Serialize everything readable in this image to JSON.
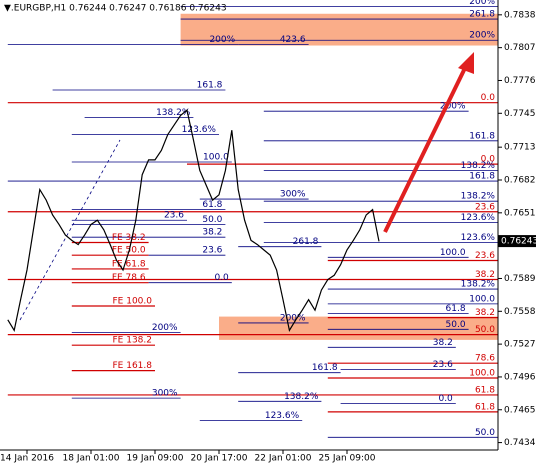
{
  "chart_data": {
    "type": "line",
    "title": "▼.EURGBP,H1  0.76244 0.76247 0.76186 0.76243",
    "categories": [
      null,
      null,
      null,
      "14 Jan 2016",
      null,
      null,
      null,
      null,
      null,
      null,
      null,
      null,
      null,
      "18 Jan 01:00",
      null,
      null,
      null,
      null,
      null,
      null,
      null,
      null,
      null,
      "19 Jan 09:00",
      null,
      null,
      null,
      null,
      null,
      null,
      null,
      null,
      null,
      "20 Jan 17:00",
      null,
      null,
      null,
      null,
      null,
      null,
      null,
      null,
      null,
      "22 Jan 01:00",
      null,
      null,
      null,
      null,
      null,
      null,
      null,
      null,
      null,
      "25 Jan 09:00",
      null,
      null,
      null,
      null,
      null
    ],
    "values": [
      0.755,
      0.754,
      0.7569,
      0.7597,
      0.7635,
      0.7673,
      0.7663,
      0.7649,
      0.764,
      0.763,
      0.7625,
      0.7621,
      0.763,
      0.764,
      0.7644,
      0.7635,
      0.7621,
      0.7606,
      0.7597,
      0.7616,
      0.7644,
      0.7687,
      0.7701,
      0.7701,
      0.771,
      0.7725,
      0.7734,
      0.7743,
      0.7748,
      0.772,
      0.7691,
      0.7677,
      0.7663,
      0.7668,
      0.7691,
      0.7729,
      0.7673,
      0.7644,
      0.7625,
      0.7621,
      0.7616,
      0.7611,
      0.7597,
      0.7569,
      0.754,
      0.755,
      0.7559,
      0.7569,
      0.7559,
      0.7578,
      0.7588,
      0.7592,
      0.7602,
      0.7616,
      0.7625,
      0.7635,
      0.7649,
      0.7654,
      0.7624
    ],
    "color": "#000000",
    "ylim": [
      0.7427,
      0.7852
    ],
    "yticks": [
      {
        "value": 0.7838,
        "label": "0.78380"
      },
      {
        "value": 0.7807,
        "label": "0.78070"
      },
      {
        "value": 0.7776,
        "label": "0.77760"
      },
      {
        "value": 0.7745,
        "label": "0.77450"
      },
      {
        "value": 0.7713,
        "label": "0.77130"
      },
      {
        "value": 0.7682,
        "label": "0.76820"
      },
      {
        "value": 0.7651,
        "label": "0.76510"
      },
      {
        "value": 0.7589,
        "label": "0.75890"
      },
      {
        "value": 0.7558,
        "label": "0.75580"
      },
      {
        "value": 0.7527,
        "label": "0.75270"
      },
      {
        "value": 0.7496,
        "label": "0.74960"
      },
      {
        "value": 0.7465,
        "label": "0.74650"
      },
      {
        "value": 0.7434,
        "label": "0.74340"
      }
    ],
    "last_price": 0.76243,
    "zones": [
      {
        "from": 27,
        "to": 77,
        "low": 0.7809,
        "high": 0.7839,
        "color": "#f9a47c"
      },
      {
        "from": 33,
        "to": 77,
        "low": 0.7531,
        "high": 0.7553,
        "color": "#f9a47c"
      }
    ],
    "levels": [
      {
        "price": 0.7846,
        "label": "200%",
        "color": "#000080",
        "from": 27,
        "to": 77
      },
      {
        "price": 0.7834,
        "label": "261.8",
        "color": "#000080",
        "from": 27,
        "to": 77
      },
      {
        "price": 0.7814,
        "label": "200%",
        "color": "#000080",
        "from": 27,
        "to": 77
      },
      {
        "price": 0.781,
        "label": "200%",
        "color": "#000080",
        "from": 0,
        "to": 36
      },
      {
        "price": 0.781,
        "label": "423.6",
        "color": "#000080",
        "from": 36,
        "to": 47
      },
      {
        "price": 0.7767,
        "label": "161.8",
        "color": "#000080",
        "from": 7,
        "to": 34
      },
      {
        "price": 0.7755,
        "label": "0.0",
        "color": "#d00000",
        "from": 0,
        "to": 77
      },
      {
        "price": 0.7747,
        "label": "200%",
        "color": "#000080",
        "from": 40,
        "to": 72
      },
      {
        "price": 0.7741,
        "label": "138.2%",
        "color": "#000080",
        "from": 12,
        "to": 29
      },
      {
        "price": 0.7725,
        "label": "123.6%",
        "color": "#000080",
        "from": 10,
        "to": 33
      },
      {
        "price": 0.7719,
        "label": "161.8",
        "color": "#000080",
        "from": 40,
        "to": 77
      },
      {
        "price": 0.7699,
        "label": "100.0",
        "color": "#000080",
        "from": 10,
        "to": 35
      },
      {
        "price": 0.7697,
        "label": "0.0",
        "color": "#d00000",
        "from": 28,
        "to": 77
      },
      {
        "price": 0.7691,
        "label": "138.2%",
        "color": "#000080",
        "from": 40,
        "to": 77
      },
      {
        "price": 0.7681,
        "label": "161.8",
        "color": "#000080",
        "from": 0,
        "to": 77
      },
      {
        "price": 0.7664,
        "label": "300%",
        "color": "#000080",
        "from": 30,
        "to": 47
      },
      {
        "price": 0.7662,
        "label": "138.2%",
        "color": "#000080",
        "from": 40,
        "to": 77
      },
      {
        "price": 0.7654,
        "label": "61.8",
        "color": "#000080",
        "from": 10,
        "to": 34
      },
      {
        "price": 0.7652,
        "label": "23.6",
        "color": "#d00000",
        "from": 0,
        "to": 77
      },
      {
        "price": 0.7644,
        "label": "23.6",
        "color": "#000080",
        "from": 10,
        "to": 28
      },
      {
        "price": 0.7642,
        "label": "123.6%",
        "color": "#000080",
        "from": 40,
        "to": 77
      },
      {
        "price": 0.764,
        "label": "50.0",
        "color": "#000080",
        "from": 10,
        "to": 34
      },
      {
        "price": 0.7628,
        "label": "38.2",
        "color": "#000080",
        "from": 10,
        "to": 34
      },
      {
        "price": 0.7623,
        "label": "FE 38.2",
        "color": "#d00000",
        "from": 10,
        "to": 22
      },
      {
        "price": 0.7623,
        "label": "123.6%",
        "color": "#000080",
        "from": 40,
        "to": 77
      },
      {
        "price": 0.7619,
        "label": "261.8",
        "color": "#000080",
        "from": 36,
        "to": 49
      },
      {
        "price": 0.7611,
        "label": "FE 50.0",
        "color": "#d00000",
        "from": 10,
        "to": 22
      },
      {
        "price": 0.7611,
        "label": "23.6",
        "color": "#000080",
        "from": 22,
        "to": 34
      },
      {
        "price": 0.7609,
        "label": "100.0",
        "color": "#000080",
        "from": 50,
        "to": 72
      },
      {
        "price": 0.7606,
        "label": "23.6",
        "color": "#d00000",
        "from": 50,
        "to": 77
      },
      {
        "price": 0.7598,
        "label": "FE 61.8",
        "color": "#d00000",
        "from": 10,
        "to": 22
      },
      {
        "price": 0.7588,
        "label": "38.2",
        "color": "#d00000",
        "from": 0,
        "to": 77
      },
      {
        "price": 0.7585,
        "label": "FE 78.6",
        "color": "#d00000",
        "from": 10,
        "to": 22
      },
      {
        "price": 0.7585,
        "label": "0.0",
        "color": "#000080",
        "from": 22,
        "to": 35
      },
      {
        "price": 0.7579,
        "label": "138.2%",
        "color": "#000080",
        "from": 50,
        "to": 77
      },
      {
        "price": 0.7565,
        "label": "100.0",
        "color": "#000080",
        "from": 50,
        "to": 77
      },
      {
        "price": 0.7563,
        "label": "FE 100.0",
        "color": "#d00000",
        "from": 10,
        "to": 23
      },
      {
        "price": 0.7556,
        "label": "61.8",
        "color": "#000080",
        "from": 50,
        "to": 72
      },
      {
        "price": 0.7552,
        "label": "38.2",
        "color": "#d00000",
        "from": 50,
        "to": 77
      },
      {
        "price": 0.7547,
        "label": "200%",
        "color": "#000080",
        "from": 36,
        "to": 47
      },
      {
        "price": 0.7541,
        "label": "50.0",
        "color": "#000080",
        "from": 50,
        "to": 72
      },
      {
        "price": 0.7538,
        "label": "200%",
        "color": "#000080",
        "from": 10,
        "to": 27
      },
      {
        "price": 0.7536,
        "label": "50.0",
        "color": "#d00000",
        "from": 0,
        "to": 77
      },
      {
        "price": 0.7526,
        "label": "FE 138.2",
        "color": "#d00000",
        "from": 10,
        "to": 23
      },
      {
        "price": 0.7524,
        "label": "38.2",
        "color": "#000080",
        "from": 50,
        "to": 70
      },
      {
        "price": 0.7509,
        "label": "78.6",
        "color": "#d00000",
        "from": 50,
        "to": 77
      },
      {
        "price": 0.7502,
        "label": "FE 161.8",
        "color": "#d00000",
        "from": 10,
        "to": 23
      },
      {
        "price": 0.75,
        "label": "161.8",
        "color": "#000080",
        "from": 36,
        "to": 52
      },
      {
        "price": 0.7503,
        "label": "23.6",
        "color": "#000080",
        "from": 52,
        "to": 70
      },
      {
        "price": 0.7495,
        "label": "100.0",
        "color": "#d00000",
        "from": 50,
        "to": 77
      },
      {
        "price": 0.7479,
        "label": "61.8",
        "color": "#d00000",
        "from": 0,
        "to": 77
      },
      {
        "price": 0.7476,
        "label": "300%",
        "color": "#000080",
        "from": 10,
        "to": 27
      },
      {
        "price": 0.7473,
        "label": "138.2%",
        "color": "#000080",
        "from": 36,
        "to": 49
      },
      {
        "price": 0.7471,
        "label": "0.0",
        "color": "#000080",
        "from": 52,
        "to": 70
      },
      {
        "price": 0.7463,
        "label": "61.8",
        "color": "#d00000",
        "from": 50,
        "to": 77
      },
      {
        "price": 0.7455,
        "label": "123.6%",
        "color": "#000080",
        "from": 30,
        "to": 46
      },
      {
        "price": 0.7439,
        "label": "50.0",
        "color": "#000080",
        "from": 50,
        "to": 77
      }
    ]
  }
}
